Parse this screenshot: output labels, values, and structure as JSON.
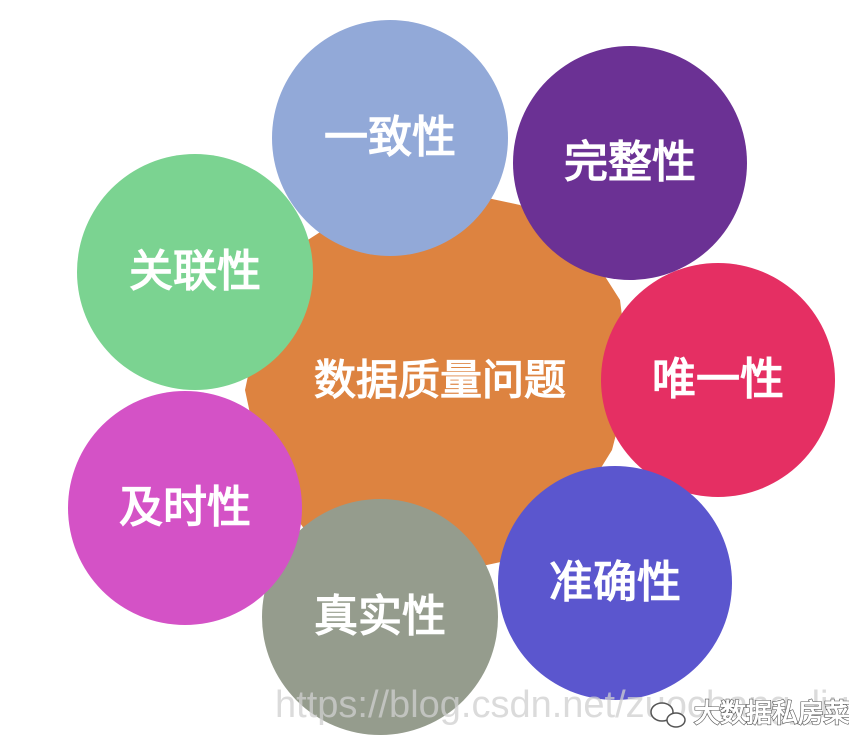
{
  "diagram": {
    "center": {
      "label": "数据质量问题",
      "color": "#dd8340"
    },
    "dimensions": [
      {
        "label": "一致性",
        "color": "#92a9d8"
      },
      {
        "label": "完整性",
        "color": "#6b3194"
      },
      {
        "label": "唯一性",
        "color": "#e52f63"
      },
      {
        "label": "准确性",
        "color": "#5b56ce"
      },
      {
        "label": "真实性",
        "color": "#959c8d"
      },
      {
        "label": "及时性",
        "color": "#d452c6"
      },
      {
        "label": "关联性",
        "color": "#7bd391"
      }
    ]
  },
  "watermark": {
    "url": "https://blog.csdn.net/zuochang_liu",
    "account": "大数据私房菜",
    "icon": "wechat-icon"
  }
}
